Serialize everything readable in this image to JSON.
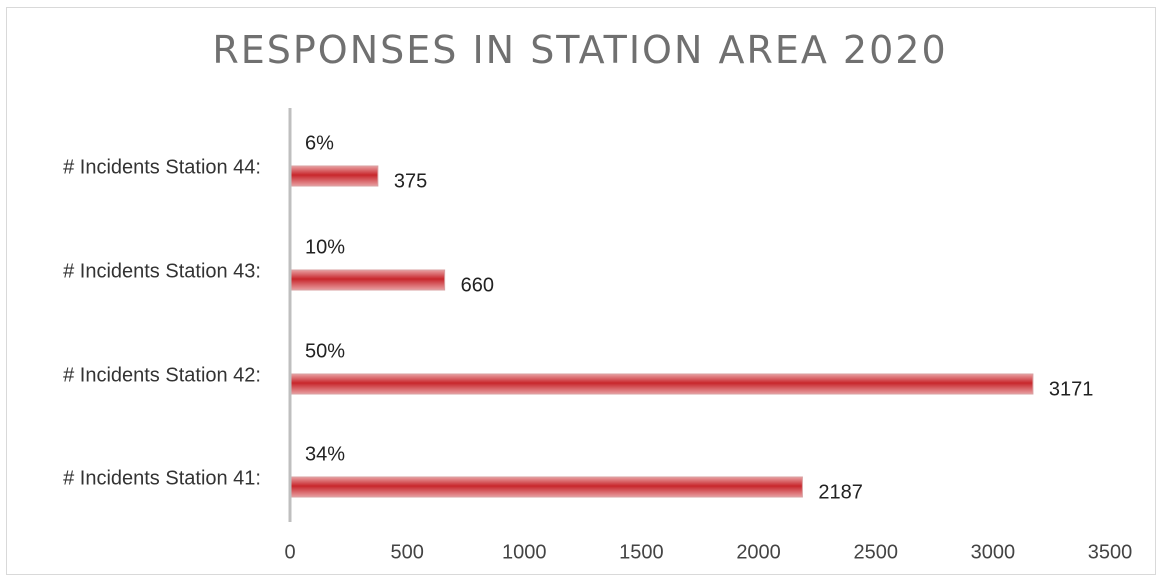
{
  "chart_data": {
    "type": "bar",
    "orientation": "horizontal",
    "title": "RESPONSES IN STATION AREA 2020",
    "categories": [
      "# Incidents Station 44:",
      "# Incidents Station 43:",
      "# Incidents Station 42:",
      "# Incidents Station 41:"
    ],
    "values": [
      375,
      660,
      3171,
      2187
    ],
    "percent_labels": [
      "6%",
      "10%",
      "50%",
      "34%"
    ],
    "value_labels": [
      "375",
      "660",
      "3171",
      "2187"
    ],
    "xlim": [
      0,
      3500
    ],
    "x_ticks": [
      "0",
      "500",
      "1000",
      "1500",
      "2000",
      "2500",
      "3000",
      "3500"
    ],
    "x_tick_values": [
      0,
      500,
      1000,
      1500,
      2000,
      2500,
      3000,
      3500
    ],
    "grid": false,
    "bar_color": "#c8272c",
    "bar_highlight_color": "#e8a0a2",
    "axis_color": "#bfbfbf"
  }
}
